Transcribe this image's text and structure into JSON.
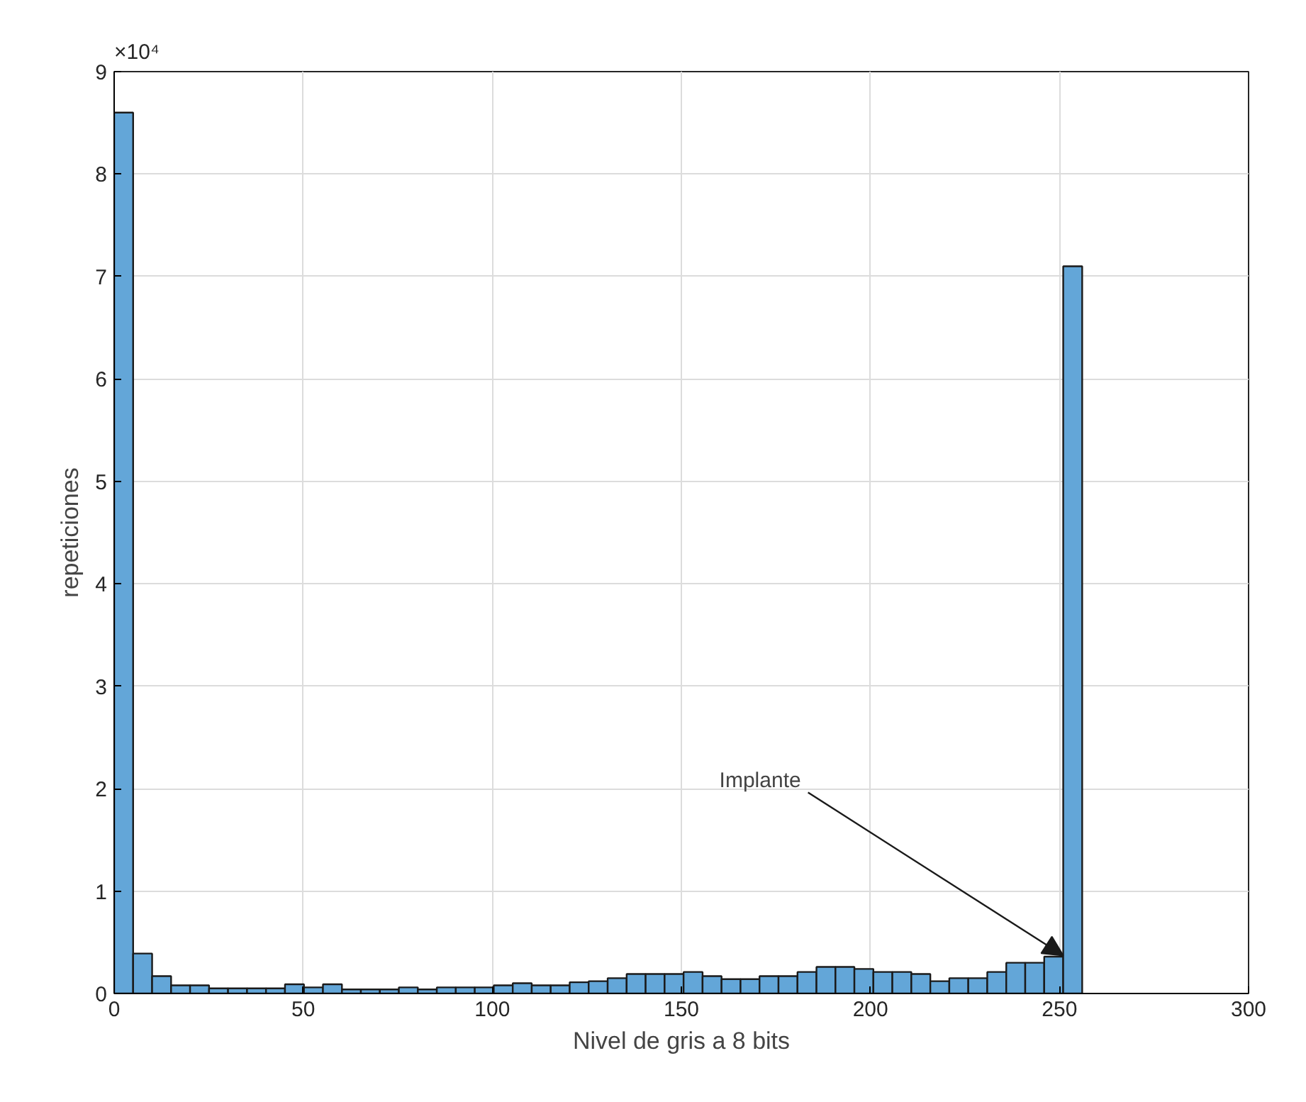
{
  "chart_data": {
    "type": "histogram",
    "xlabel": "Nivel de gris a 8 bits",
    "ylabel": "repeticiones",
    "bins": [
      0,
      5.02,
      10.04,
      15.06,
      20.08,
      25.1,
      30.12,
      35.14,
      40.16,
      45.18,
      50.2,
      55.22,
      60.24,
      65.25,
      70.27,
      75.29,
      80.31,
      85.33,
      90.35,
      95.37,
      100.39,
      105.41,
      110.43,
      115.45,
      120.47,
      125.49,
      130.51,
      135.53,
      140.55,
      145.57,
      150.59,
      155.61,
      160.63,
      165.65,
      170.67,
      175.69,
      180.71,
      185.73,
      190.75,
      195.76,
      200.78,
      205.8,
      210.82,
      215.84,
      220.86,
      225.88,
      230.9,
      235.92,
      240.94,
      245.96,
      250.98,
      256
    ],
    "values": [
      8.6,
      0.39,
      0.17,
      0.08,
      0.08,
      0.05,
      0.05,
      0.05,
      0.05,
      0.09,
      0.06,
      0.09,
      0.04,
      0.04,
      0.04,
      0.06,
      0.04,
      0.06,
      0.06,
      0.06,
      0.08,
      0.1,
      0.08,
      0.08,
      0.11,
      0.12,
      0.15,
      0.19,
      0.19,
      0.19,
      0.21,
      0.17,
      0.14,
      0.14,
      0.17,
      0.17,
      0.21,
      0.26,
      0.26,
      0.24,
      0.21,
      0.21,
      0.19,
      0.12,
      0.15,
      0.15,
      0.21,
      0.3,
      0.3,
      0.36,
      7.1
    ],
    "color": "#63a6d8",
    "xlim": [
      0,
      300
    ],
    "xticks": [
      0,
      50,
      100,
      150,
      200,
      250,
      300
    ],
    "ylim": [
      0,
      9
    ],
    "yticks": [
      0,
      1,
      2,
      3,
      4,
      5,
      6,
      7,
      8,
      9
    ],
    "annotations": [
      "×10⁴",
      {
        "text": "Implante",
        "x": 251,
        "y": 0.37
      }
    ],
    "grid": true
  }
}
